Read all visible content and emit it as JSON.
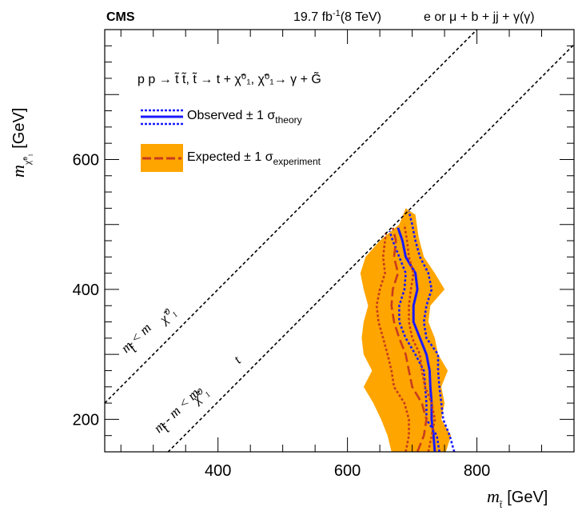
{
  "chart_data": {
    "type": "line",
    "experiment": "CMS",
    "luminosity": "19.7 fb",
    "luminosity_sup": "-1",
    "energy": "(8 TeV)",
    "final_state": "e or μ + b + jj + γ(γ)",
    "process": "p p → t̃ t̃,  t̃ → t + χ̃⁰₁,  χ̃⁰₁→ γ + G̃",
    "xlabel": "m",
    "xlabel_sub": "t̃",
    "xlabel_unit": "[GeV]",
    "ylabel": "m",
    "ylabel_sub": "χ̃⁰₁",
    "ylabel_unit": "[GeV]",
    "xlim": [
      225,
      950
    ],
    "ylim": [
      150,
      800
    ],
    "x_ticks": [
      400,
      600,
      800
    ],
    "y_ticks": [
      200,
      400,
      600
    ],
    "legend": [
      {
        "label": "Observed ± 1 σ",
        "sub": "theory",
        "color": "#1a1aff"
      },
      {
        "label": "Expected ± 1 σ",
        "sub": "experiment",
        "color": "#c83c1e",
        "band_color": "#ffa500"
      }
    ],
    "diagonals": [
      {
        "label": "m  <  m",
        "label_sub1": "t̃",
        "label_sub2": "χ̃⁰₁",
        "offset": 0
      },
      {
        "label": "m  -  m   <  m",
        "label_sub1": "t̃",
        "label_sub2": "χ̃⁰₁",
        "label_sub3": "t",
        "offset": 173
      }
    ],
    "series": [
      {
        "name": "expected_band",
        "type": "area",
        "color": "#ffa500",
        "points": [
          [
            668,
            150
          ],
          [
            662,
            175
          ],
          [
            652,
            200
          ],
          [
            640,
            225
          ],
          [
            625,
            250
          ],
          [
            638,
            275
          ],
          [
            625,
            300
          ],
          [
            622,
            325
          ],
          [
            625,
            350
          ],
          [
            632,
            375
          ],
          [
            625,
            400
          ],
          [
            620,
            425
          ],
          [
            628,
            450
          ],
          [
            650,
            475
          ],
          [
            680,
            500
          ],
          [
            690,
            525
          ],
          [
            705,
            515
          ],
          [
            710,
            480
          ],
          [
            718,
            450
          ],
          [
            735,
            425
          ],
          [
            750,
            400
          ],
          [
            728,
            375
          ],
          [
            725,
            350
          ],
          [
            735,
            325
          ],
          [
            740,
            300
          ],
          [
            755,
            275
          ],
          [
            745,
            250
          ],
          [
            750,
            225
          ],
          [
            745,
            200
          ],
          [
            760,
            175
          ],
          [
            752,
            150
          ]
        ]
      },
      {
        "name": "observed",
        "type": "line",
        "color": "#1a1aff",
        "dash": "solid",
        "points": [
          [
            735,
            150
          ],
          [
            733,
            175
          ],
          [
            730,
            200
          ],
          [
            730,
            225
          ],
          [
            728,
            250
          ],
          [
            727,
            275
          ],
          [
            722,
            300
          ],
          [
            712,
            325
          ],
          [
            702,
            350
          ],
          [
            702,
            375
          ],
          [
            708,
            400
          ],
          [
            705,
            425
          ],
          [
            690,
            450
          ],
          [
            685,
            475
          ],
          [
            678,
            495
          ]
        ]
      },
      {
        "name": "observed_plus",
        "type": "line",
        "color": "#1a1aff",
        "dash": "dotted",
        "points": [
          [
            765,
            150
          ],
          [
            758,
            175
          ],
          [
            748,
            200
          ],
          [
            745,
            225
          ],
          [
            742,
            250
          ],
          [
            740,
            275
          ],
          [
            740,
            300
          ],
          [
            722,
            325
          ],
          [
            718,
            350
          ],
          [
            722,
            375
          ],
          [
            730,
            400
          ],
          [
            725,
            425
          ],
          [
            712,
            450
          ],
          [
            705,
            475
          ],
          [
            700,
            500
          ],
          [
            695,
            520
          ]
        ]
      },
      {
        "name": "observed_minus",
        "type": "line",
        "color": "#1a1aff",
        "dash": "dotted",
        "points": [
          [
            742,
            150
          ],
          [
            738,
            175
          ],
          [
            722,
            200
          ],
          [
            722,
            225
          ],
          [
            720,
            250
          ],
          [
            718,
            275
          ],
          [
            705,
            300
          ],
          [
            690,
            325
          ],
          [
            680,
            350
          ],
          [
            680,
            375
          ],
          [
            688,
            400
          ],
          [
            690,
            425
          ],
          [
            680,
            450
          ],
          [
            670,
            475
          ],
          [
            665,
            490
          ]
        ]
      },
      {
        "name": "expected",
        "type": "line",
        "color": "#c83c1e",
        "dash": "dashed",
        "points": [
          [
            708,
            150
          ],
          [
            718,
            175
          ],
          [
            722,
            200
          ],
          [
            715,
            225
          ],
          [
            700,
            250
          ],
          [
            695,
            275
          ],
          [
            690,
            300
          ],
          [
            680,
            325
          ],
          [
            672,
            350
          ],
          [
            668,
            375
          ],
          [
            670,
            400
          ],
          [
            678,
            425
          ],
          [
            672,
            450
          ],
          [
            675,
            475
          ],
          [
            670,
            495
          ]
        ]
      },
      {
        "name": "expected_plus",
        "type": "line",
        "color": "#c83c1e",
        "dash": "dotted",
        "points": [
          [
            725,
            150
          ],
          [
            730,
            175
          ],
          [
            735,
            200
          ],
          [
            730,
            225
          ],
          [
            720,
            250
          ],
          [
            715,
            275
          ],
          [
            712,
            300
          ],
          [
            700,
            325
          ],
          [
            695,
            350
          ],
          [
            695,
            375
          ],
          [
            698,
            400
          ],
          [
            702,
            425
          ],
          [
            695,
            450
          ],
          [
            692,
            475
          ],
          [
            688,
            500
          ]
        ]
      },
      {
        "name": "expected_minus",
        "type": "line",
        "color": "#c83c1e",
        "dash": "dotted",
        "points": [
          [
            690,
            150
          ],
          [
            695,
            175
          ],
          [
            695,
            200
          ],
          [
            688,
            225
          ],
          [
            672,
            250
          ],
          [
            668,
            275
          ],
          [
            662,
            300
          ],
          [
            655,
            325
          ],
          [
            648,
            350
          ],
          [
            645,
            375
          ],
          [
            650,
            400
          ],
          [
            658,
            425
          ],
          [
            655,
            450
          ],
          [
            658,
            475
          ],
          [
            660,
            490
          ]
        ]
      }
    ]
  }
}
